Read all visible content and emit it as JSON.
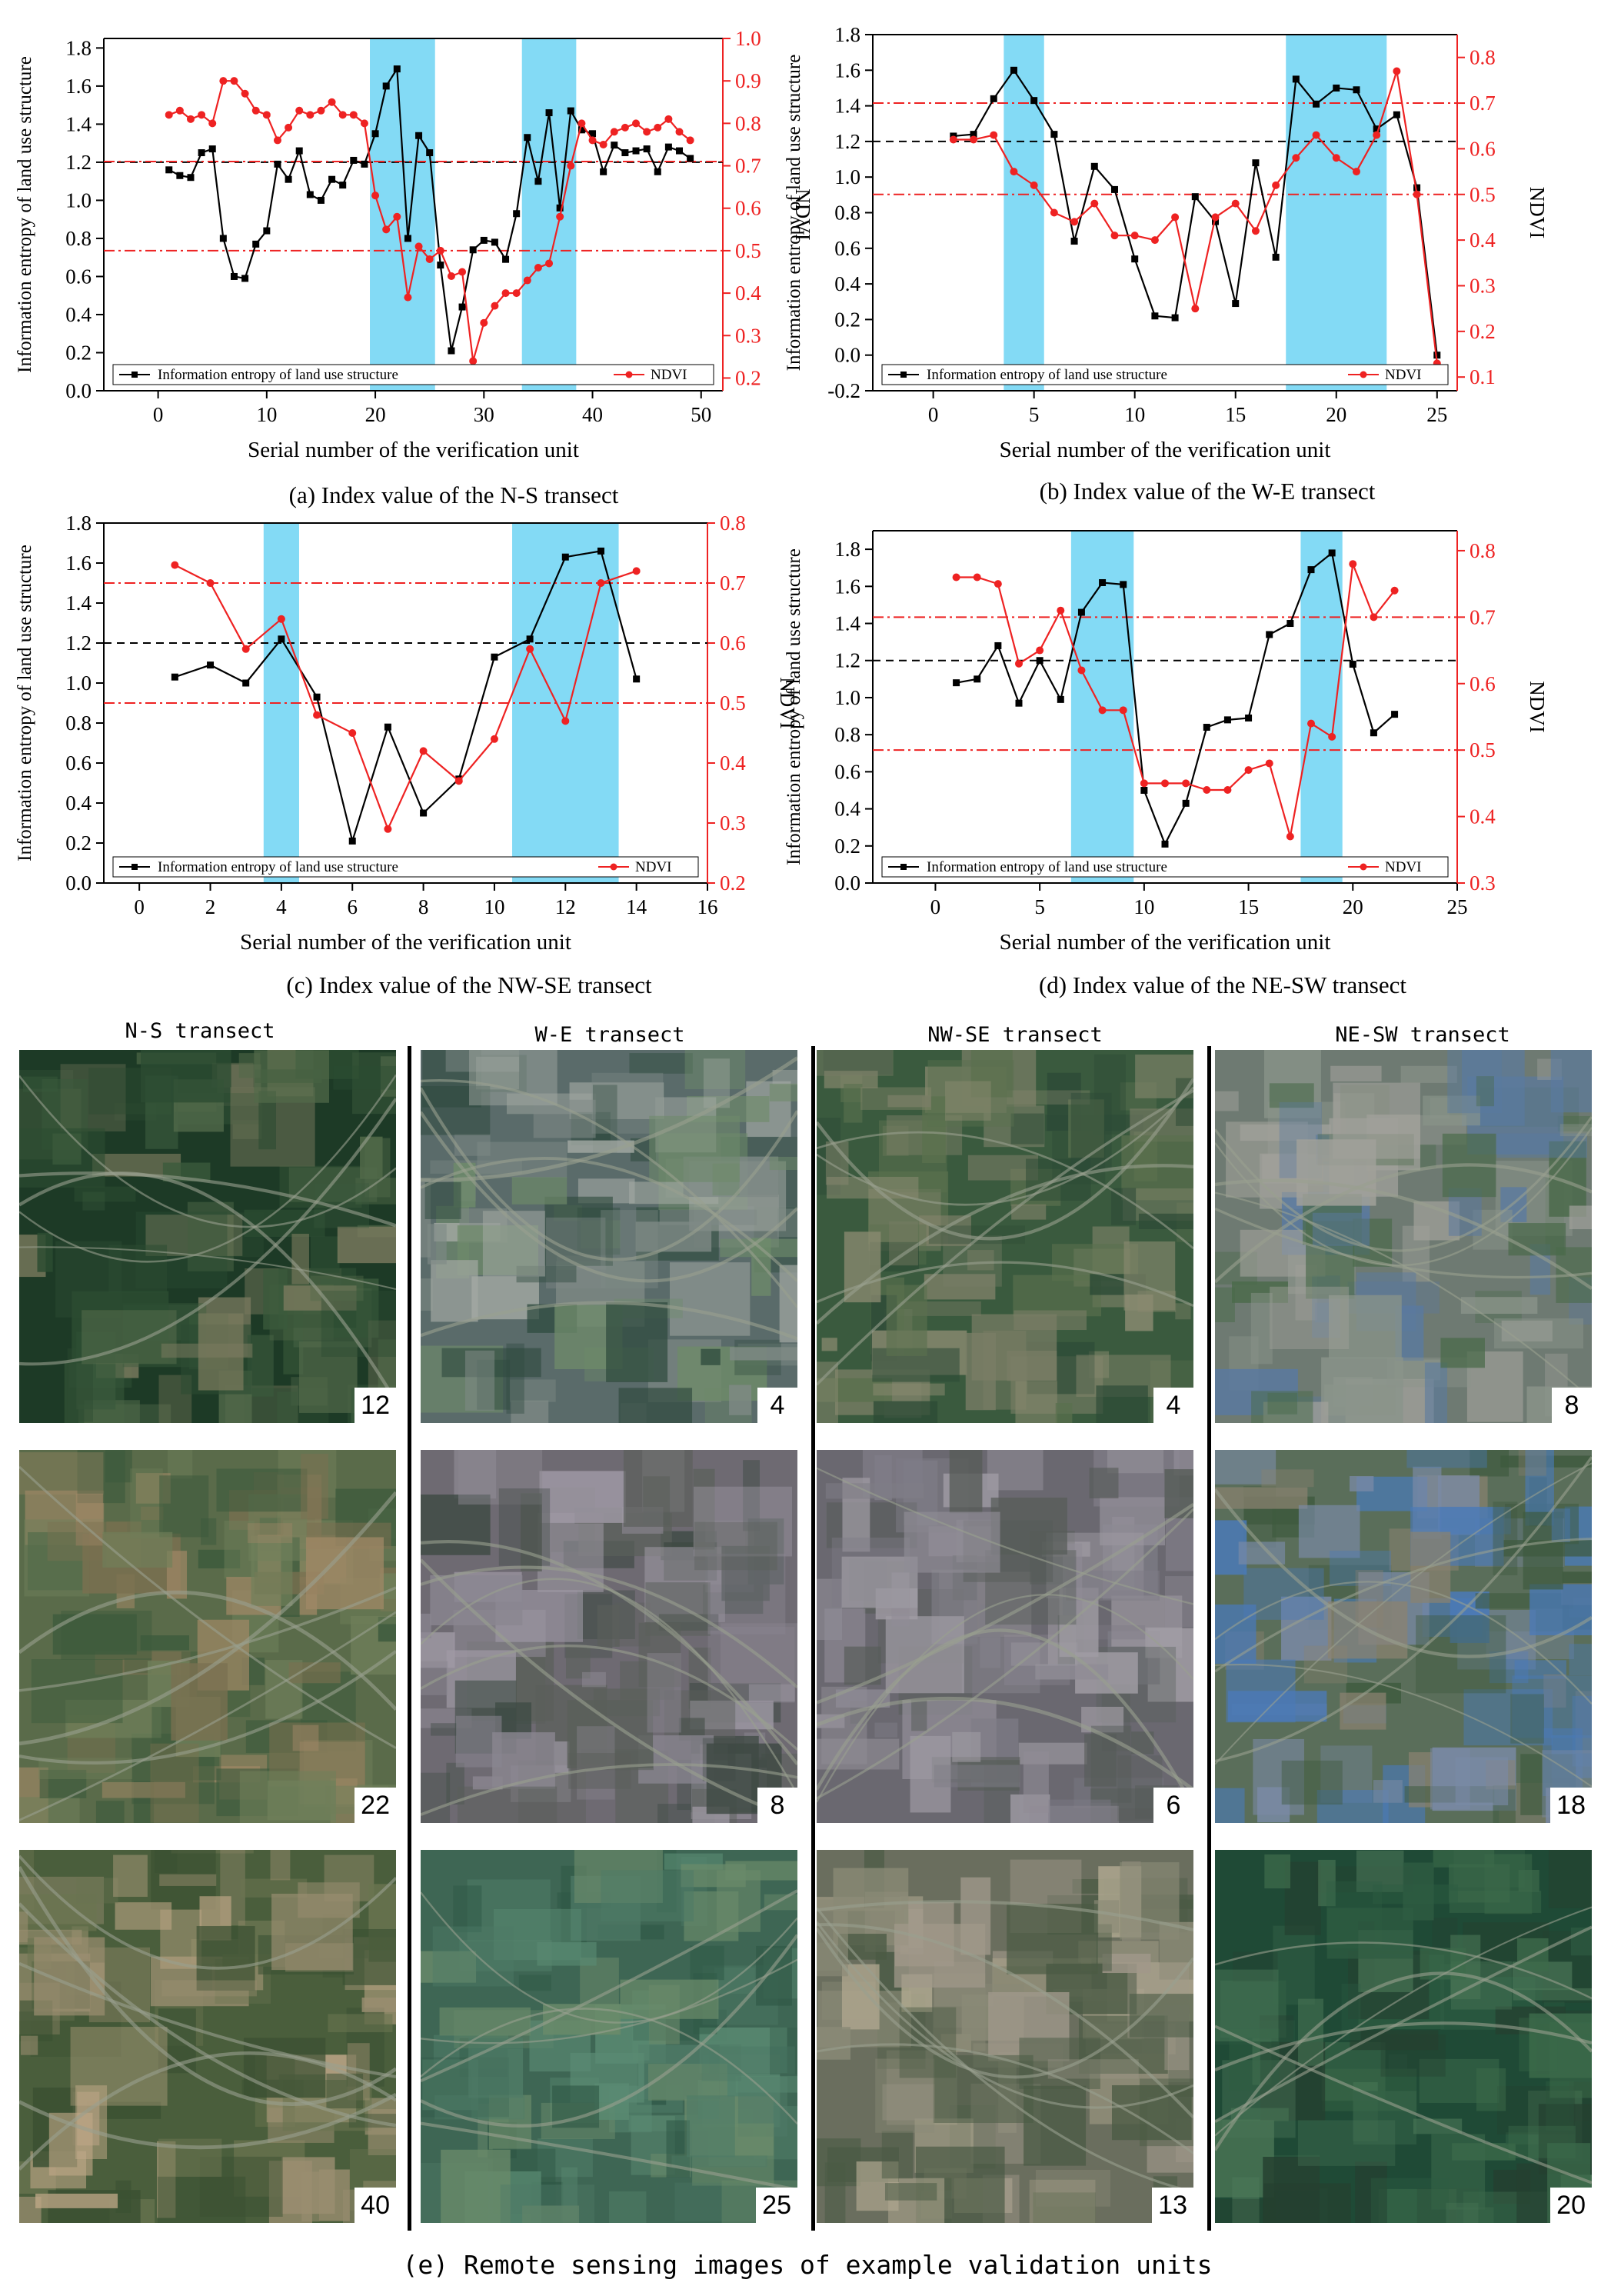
{
  "legend": {
    "entropy": "Information entropy of land use structure",
    "ndvi": "NDVI"
  },
  "chart_data": [
    {
      "type": "line",
      "id": "ns",
      "title": "(a) Index value of the N-S transect",
      "xlabel": "Serial number of the verification unit",
      "ylabel": "Information entropy of land use structure",
      "y2label": "NDVI",
      "xlim": [
        -5,
        52
      ],
      "xticks": [
        0,
        10,
        20,
        30,
        40,
        50
      ],
      "ylim": [
        0,
        1.85
      ],
      "yticks": [
        0.0,
        0.2,
        0.4,
        0.6,
        0.8,
        1.0,
        1.2,
        1.4,
        1.6,
        1.8
      ],
      "y2lim": [
        0.17,
        1.0
      ],
      "y2ticks": [
        0.2,
        0.3,
        0.4,
        0.5,
        0.6,
        0.7,
        0.8,
        0.9,
        1.0
      ],
      "entropy_ref": 1.2,
      "ndvi_refs": [
        0.71,
        0.5
      ],
      "highlights": [
        [
          19.5,
          25.5
        ],
        [
          33.5,
          38.5
        ]
      ],
      "series": [
        {
          "name": "Information entropy of land use structure",
          "axis": "left",
          "color": "#000000",
          "x": [
            1,
            2,
            3,
            4,
            5,
            6,
            7,
            8,
            9,
            10,
            11,
            12,
            13,
            14,
            15,
            16,
            17,
            18,
            19,
            20,
            21,
            22,
            23,
            24,
            25,
            26,
            27,
            28,
            29,
            30,
            31,
            32,
            33,
            34,
            35,
            36,
            37,
            38,
            39,
            40,
            41,
            42,
            43,
            44,
            45,
            46,
            47,
            48,
            49
          ],
          "values": [
            1.16,
            1.13,
            1.12,
            1.25,
            1.27,
            0.8,
            0.6,
            0.59,
            0.77,
            0.84,
            1.19,
            1.11,
            1.26,
            1.03,
            1.0,
            1.11,
            1.08,
            1.21,
            1.19,
            1.35,
            1.6,
            1.69,
            0.8,
            1.34,
            1.25,
            0.66,
            0.21,
            0.44,
            0.74,
            0.79,
            0.78,
            0.69,
            0.93,
            1.33,
            1.1,
            1.46,
            0.96,
            1.47,
            1.37,
            1.35,
            1.15,
            1.29,
            1.25,
            1.26,
            1.27,
            1.15,
            1.28,
            1.26,
            1.22
          ]
        },
        {
          "name": "NDVI",
          "axis": "right",
          "color": "#ee2222",
          "x": [
            1,
            2,
            3,
            4,
            5,
            6,
            7,
            8,
            9,
            10,
            11,
            12,
            13,
            14,
            15,
            16,
            17,
            18,
            19,
            20,
            21,
            22,
            23,
            24,
            25,
            26,
            27,
            28,
            29,
            30,
            31,
            32,
            33,
            34,
            35,
            36,
            37,
            38,
            39,
            40,
            41,
            42,
            43,
            44,
            45,
            46,
            47,
            48,
            49
          ],
          "values": [
            0.82,
            0.83,
            0.81,
            0.82,
            0.8,
            0.9,
            0.9,
            0.87,
            0.83,
            0.82,
            0.76,
            0.79,
            0.83,
            0.82,
            0.83,
            0.85,
            0.82,
            0.82,
            0.8,
            0.63,
            0.55,
            0.58,
            0.39,
            0.51,
            0.48,
            0.5,
            0.44,
            0.45,
            0.24,
            0.33,
            0.37,
            0.4,
            0.4,
            0.43,
            0.46,
            0.47,
            0.58,
            0.7,
            0.8,
            0.76,
            0.75,
            0.78,
            0.79,
            0.8,
            0.78,
            0.79,
            0.81,
            0.78,
            0.76
          ]
        }
      ]
    },
    {
      "type": "line",
      "id": "we",
      "title": "(b) Index value of the W-E transect",
      "xlabel": "Serial number of the verification unit",
      "ylabel": "Information entropy of land use structure",
      "y2label": "NDVI",
      "xlim": [
        -3,
        26
      ],
      "xticks": [
        0,
        5,
        10,
        15,
        20,
        25
      ],
      "ylim": [
        -0.2,
        1.8
      ],
      "yticks": [
        -0.2,
        0.0,
        0.2,
        0.4,
        0.6,
        0.8,
        1.0,
        1.2,
        1.4,
        1.6,
        1.8
      ],
      "y2lim": [
        0.07,
        0.85
      ],
      "y2ticks": [
        0.1,
        0.2,
        0.3,
        0.4,
        0.5,
        0.6,
        0.7,
        0.8
      ],
      "entropy_ref": 1.2,
      "ndvi_refs": [
        0.7,
        0.5
      ],
      "highlights": [
        [
          3.5,
          5.5
        ],
        [
          17.5,
          22.5
        ]
      ],
      "series": [
        {
          "name": "Information entropy of land use structure",
          "axis": "left",
          "color": "#000000",
          "x": [
            1,
            2,
            3,
            4,
            5,
            6,
            7,
            8,
            9,
            10,
            11,
            12,
            13,
            14,
            15,
            16,
            17,
            18,
            19,
            20,
            21,
            22,
            23,
            24,
            25
          ],
          "values": [
            1.23,
            1.24,
            1.44,
            1.6,
            1.43,
            1.24,
            0.64,
            1.06,
            0.93,
            0.54,
            0.22,
            0.21,
            0.89,
            0.75,
            0.29,
            1.08,
            0.55,
            1.55,
            1.41,
            1.5,
            1.49,
            1.27,
            1.35,
            0.94,
            0.0
          ]
        },
        {
          "name": "NDVI",
          "axis": "right",
          "color": "#ee2222",
          "x": [
            1,
            2,
            3,
            4,
            5,
            6,
            7,
            8,
            9,
            10,
            11,
            12,
            13,
            14,
            15,
            16,
            17,
            18,
            19,
            20,
            21,
            22,
            23,
            24,
            25
          ],
          "values": [
            0.62,
            0.62,
            0.63,
            0.55,
            0.52,
            0.46,
            0.44,
            0.48,
            0.41,
            0.41,
            0.4,
            0.45,
            0.25,
            0.45,
            0.48,
            0.42,
            0.52,
            0.58,
            0.63,
            0.58,
            0.55,
            0.63,
            0.77,
            0.5,
            0.13
          ]
        }
      ]
    },
    {
      "type": "line",
      "id": "nwse",
      "title": "(c) Index value of the NW-SE transect",
      "xlabel": "Serial number of the verification unit",
      "ylabel": "Information entropy of land use structure",
      "y2label": "NDVI",
      "xlim": [
        -1,
        16
      ],
      "xticks": [
        0,
        2,
        4,
        6,
        8,
        10,
        12,
        14,
        16
      ],
      "ylim": [
        0,
        1.8
      ],
      "yticks": [
        0.0,
        0.2,
        0.4,
        0.6,
        0.8,
        1.0,
        1.2,
        1.4,
        1.6,
        1.8
      ],
      "y2lim": [
        0.2,
        0.8
      ],
      "y2ticks": [
        0.2,
        0.3,
        0.4,
        0.5,
        0.6,
        0.7,
        0.8
      ],
      "entropy_ref": 1.2,
      "ndvi_refs": [
        0.7,
        0.5
      ],
      "highlights": [
        [
          3.5,
          4.5
        ],
        [
          10.5,
          13.5
        ]
      ],
      "series": [
        {
          "name": "Information entropy of land use structure",
          "axis": "left",
          "color": "#000000",
          "x": [
            1,
            2,
            3,
            4,
            5,
            6,
            7,
            8,
            9,
            10,
            11,
            12,
            13,
            14
          ],
          "values": [
            1.03,
            1.09,
            1.0,
            1.22,
            0.93,
            0.21,
            0.78,
            0.35,
            0.52,
            1.13,
            1.22,
            1.63,
            1.66,
            1.02
          ]
        },
        {
          "name": "NDVI",
          "axis": "right",
          "color": "#ee2222",
          "x": [
            1,
            2,
            3,
            4,
            5,
            6,
            7,
            8,
            9,
            10,
            11,
            12,
            13,
            14
          ],
          "values": [
            0.73,
            0.7,
            0.59,
            0.64,
            0.48,
            0.45,
            0.29,
            0.42,
            0.37,
            0.44,
            0.59,
            0.47,
            0.7,
            0.72
          ]
        }
      ]
    },
    {
      "type": "line",
      "id": "nesw",
      "title": "(d) Index value of the NE-SW transect",
      "xlabel": "Serial number of the verification unit",
      "ylabel": "Information entropy of land use structure",
      "y2label": "NDVI",
      "xlim": [
        -3,
        25
      ],
      "xticks": [
        0,
        5,
        10,
        15,
        20,
        25
      ],
      "ylim": [
        0,
        1.9
      ],
      "yticks": [
        0.0,
        0.2,
        0.4,
        0.6,
        0.8,
        1.0,
        1.2,
        1.4,
        1.6,
        1.8
      ],
      "y2lim": [
        0.3,
        0.83
      ],
      "y2ticks": [
        0.3,
        0.4,
        0.5,
        0.6,
        0.7,
        0.8
      ],
      "entropy_ref": 1.2,
      "ndvi_refs": [
        0.7,
        0.5
      ],
      "highlights": [
        [
          6.5,
          9.5
        ],
        [
          17.5,
          19.5
        ]
      ],
      "series": [
        {
          "name": "Information entropy of land use structure",
          "axis": "left",
          "color": "#000000",
          "x": [
            1,
            2,
            3,
            4,
            5,
            6,
            7,
            8,
            9,
            10,
            11,
            12,
            13,
            14,
            15,
            16,
            17,
            18,
            19,
            20,
            21,
            22
          ],
          "values": [
            1.08,
            1.1,
            1.28,
            0.97,
            1.2,
            0.99,
            1.46,
            1.62,
            1.61,
            0.5,
            0.21,
            0.43,
            0.84,
            0.88,
            0.89,
            1.34,
            1.4,
            1.69,
            1.78,
            1.18,
            0.81,
            0.91
          ]
        },
        {
          "name": "NDVI",
          "axis": "right",
          "color": "#ee2222",
          "x": [
            1,
            2,
            3,
            4,
            5,
            6,
            7,
            8,
            9,
            10,
            11,
            12,
            13,
            14,
            15,
            16,
            17,
            18,
            19,
            20,
            21,
            22
          ],
          "values": [
            0.76,
            0.76,
            0.75,
            0.63,
            0.65,
            0.71,
            0.62,
            0.56,
            0.56,
            0.45,
            0.45,
            0.45,
            0.44,
            0.44,
            0.47,
            0.48,
            0.37,
            0.54,
            0.52,
            0.78,
            0.7,
            0.74
          ]
        }
      ]
    }
  ],
  "images": {
    "columns": [
      {
        "title": "N-S transect",
        "units": [
          "12",
          "22",
          "40"
        ]
      },
      {
        "title": "W-E transect",
        "units": [
          "4",
          "8",
          "25"
        ]
      },
      {
        "title": "NW-SE transect",
        "units": [
          "4",
          "6",
          "13"
        ]
      },
      {
        "title": "NE-SW transect",
        "units": [
          "8",
          "18",
          "20"
        ]
      }
    ],
    "caption": "(e) Remote sensing images of example validation units"
  }
}
